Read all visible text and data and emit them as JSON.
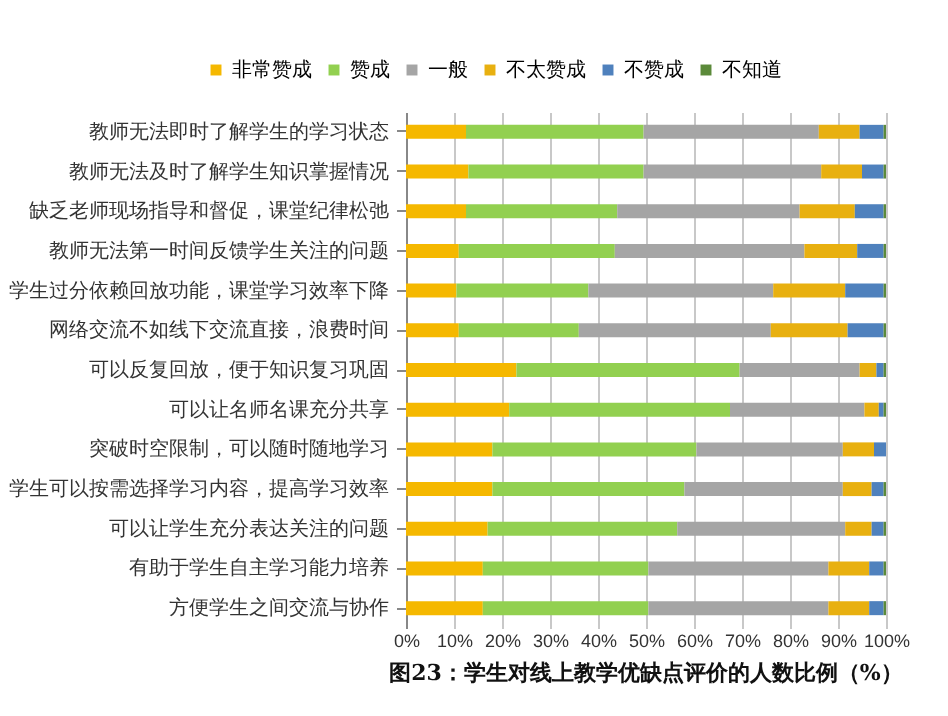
{
  "chart_data": {
    "type": "bar",
    "title": "图23：学生对线上教学优缺点评价的人数比例（%）",
    "orientation": "horizontal",
    "stacked": true,
    "categories": [
      "教师无法即时了解学生的学习状态",
      "教师无法及时了解学生知识掌握情况",
      "缺乏老师现场指导和督促，课堂纪律松弛",
      "教师无法第一时间反馈学生关注的问题",
      "学生过分依赖回放功能，课堂学习效率下降",
      "网络交流不如线下交流直接，浪费时间",
      "可以反复回放，便于知识复习巩固",
      "可以让名师名课充分共享",
      "突破时空限制，可以随时随地学习",
      "学生可以按需选择学习内容，提高学习效率",
      "可以让学生充分表达关注的问题",
      "有助于学生自主学习能力培养",
      "方便学生之间交流与协作"
    ],
    "series": [
      {
        "name": "非常赞成",
        "color": "#f5b800",
        "values": [
          12.5,
          13,
          12.5,
          11,
          10.5,
          11,
          23,
          21.5,
          18,
          18,
          17,
          16,
          16
        ]
      },
      {
        "name": "赞成",
        "color": "#92d050",
        "values": [
          37,
          36.5,
          31.5,
          32.5,
          27.5,
          25,
          46.5,
          46,
          42.5,
          40,
          39.5,
          34.5,
          34.5
        ]
      },
      {
        "name": "一般",
        "color": "#a5a5a5",
        "values": [
          36.5,
          37,
          38,
          39.5,
          38.5,
          40,
          25,
          28,
          30.5,
          33,
          35,
          37.5,
          37.5
        ]
      },
      {
        "name": "不太赞成",
        "color": "#e8b010",
        "values": [
          8.5,
          8.5,
          11.5,
          11,
          15,
          16,
          3.5,
          3,
          6.5,
          6,
          5.5,
          8.5,
          8.5
        ]
      },
      {
        "name": "不赞成",
        "color": "#4f81bd",
        "values": [
          5,
          4.5,
          6,
          5.5,
          8,
          7.5,
          1.5,
          1,
          2.5,
          2.5,
          2.5,
          3,
          3
        ]
      },
      {
        "name": "不知道",
        "color": "#5b8a3a",
        "values": [
          0.5,
          0.5,
          0.5,
          0.5,
          0.5,
          0.5,
          0.5,
          0.5,
          0,
          0.5,
          0.5,
          0.5,
          0.5
        ]
      }
    ],
    "xlim": [
      0,
      100
    ],
    "xticks": [
      {
        "value": 0,
        "label": "0%"
      },
      {
        "value": 10,
        "label": "10%"
      },
      {
        "value": 20,
        "label": "20%"
      },
      {
        "value": 30,
        "label": "30%"
      },
      {
        "value": 40,
        "label": "40%"
      },
      {
        "value": 50,
        "label": "50%"
      },
      {
        "value": 60,
        "label": "60%"
      },
      {
        "value": 70,
        "label": "70%"
      },
      {
        "value": 80,
        "label": "80%"
      },
      {
        "value": 90,
        "label": "90%"
      },
      {
        "value": 100,
        "label": "100%"
      }
    ],
    "grid": "x",
    "legend": "top"
  }
}
